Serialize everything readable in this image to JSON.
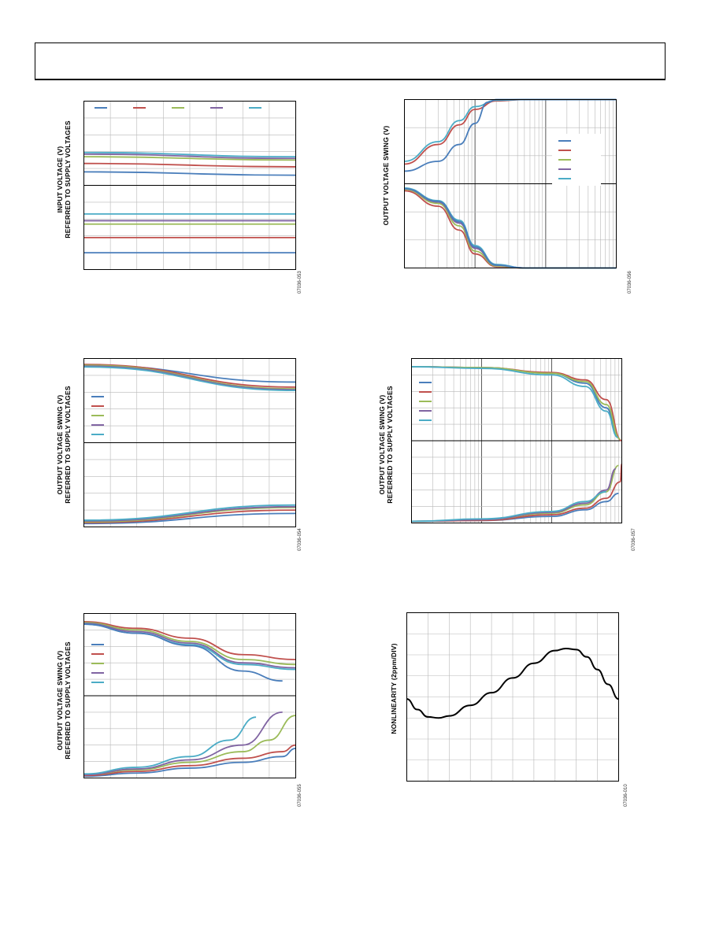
{
  "page": {
    "header_text": ""
  },
  "colors": {
    "s1": "#4a7ebb",
    "s2": "#c0504d",
    "s3": "#9bbb59",
    "s4": "#8064a2",
    "s5": "#4bacc6",
    "grid": "#b8b8b8",
    "axis": "#000000",
    "nonlinearity": "#000000"
  },
  "chart_data": [
    {
      "id": "input-voltage",
      "type": "line",
      "ylabel_line1": "INPUT VOLTAGE (V)",
      "ylabel_line2": "REFERRED TO SUPPLY VOLTAGES",
      "figure_id": "07036-053",
      "xscale": "linear",
      "xlim": [
        0,
        8
      ],
      "ylim": [
        0,
        10
      ],
      "split_y": 5,
      "grid_x": 8,
      "grid_y": 10,
      "legend_position": "top",
      "series": [
        {
          "color": "s1",
          "x": [
            0,
            8
          ],
          "y": [
            5.8,
            5.6
          ]
        },
        {
          "color": "s2",
          "x": [
            0,
            8
          ],
          "y": [
            6.3,
            6.1
          ]
        },
        {
          "color": "s3",
          "x": [
            0,
            8
          ],
          "y": [
            6.7,
            6.5
          ]
        },
        {
          "color": "s4",
          "x": [
            0,
            8
          ],
          "y": [
            6.85,
            6.6
          ]
        },
        {
          "color": "s5",
          "x": [
            0,
            8
          ],
          "y": [
            6.95,
            6.7
          ]
        },
        {
          "color": "s5",
          "x": [
            0,
            8
          ],
          "y": [
            3.3,
            3.3
          ]
        },
        {
          "color": "s4",
          "x": [
            0,
            8
          ],
          "y": [
            2.9,
            2.9
          ]
        },
        {
          "color": "s3",
          "x": [
            0,
            8
          ],
          "y": [
            2.7,
            2.7
          ]
        },
        {
          "color": "s2",
          "x": [
            0,
            8
          ],
          "y": [
            1.9,
            1.9
          ]
        },
        {
          "color": "s1",
          "x": [
            0,
            8
          ],
          "y": [
            1.0,
            1.0
          ]
        }
      ]
    },
    {
      "id": "swing-vs-frequency",
      "type": "line",
      "ylabel_line1": "OUTPUT VOLTAGE SWING (V)",
      "ylabel_line2": "",
      "figure_id": "07036-056",
      "xscale": "log",
      "xlim": [
        1,
        1000
      ],
      "ylim": [
        -6,
        6
      ],
      "split_y": 0,
      "grid_x_decades": 3,
      "grid_y": 6,
      "legend_position": "right",
      "series": [
        {
          "color": "s2",
          "x": [
            1,
            3,
            6,
            10,
            20,
            50,
            1000
          ],
          "y": [
            1.4,
            2.8,
            4.2,
            5.3,
            5.9,
            6.0,
            6.0
          ]
        },
        {
          "color": "s5",
          "x": [
            1,
            3,
            6,
            10,
            20,
            50,
            1000
          ],
          "y": [
            1.6,
            3.0,
            4.5,
            5.5,
            5.95,
            6.0,
            6.0
          ]
        },
        {
          "color": "s1",
          "x": [
            1,
            3,
            6,
            10,
            15,
            20,
            1000
          ],
          "y": [
            0.9,
            1.6,
            2.8,
            4.3,
            5.8,
            6.0,
            6.0
          ]
        },
        {
          "color": "s2",
          "x": [
            1,
            3,
            6,
            10,
            20,
            50,
            1000
          ],
          "y": [
            -0.5,
            -1.6,
            -3.3,
            -5.0,
            -5.9,
            -6.0,
            -6.0
          ]
        },
        {
          "color": "s3",
          "x": [
            1,
            3,
            6,
            10,
            20,
            50,
            1000
          ],
          "y": [
            -0.4,
            -1.4,
            -3.0,
            -4.8,
            -5.85,
            -6.0,
            -6.0
          ]
        },
        {
          "color": "s4",
          "x": [
            1,
            3,
            6,
            10,
            20,
            50,
            1000
          ],
          "y": [
            -0.35,
            -1.3,
            -2.8,
            -4.6,
            -5.8,
            -6.0,
            -6.0
          ]
        },
        {
          "color": "s5",
          "x": [
            1,
            3,
            6,
            10,
            20,
            50,
            1000
          ],
          "y": [
            -0.3,
            -1.2,
            -2.6,
            -4.4,
            -5.75,
            -6.0,
            -6.0
          ]
        },
        {
          "color": "s1",
          "x": [
            1,
            3,
            6,
            10,
            20,
            50,
            1000
          ],
          "y": [
            -0.35,
            -1.25,
            -2.7,
            -4.5,
            -5.8,
            -6.0,
            -6.0
          ]
        }
      ]
    },
    {
      "id": "swing-vs-load-linear",
      "type": "line",
      "ylabel_line1": "OUTPUT VOLTAGE SWING (V)",
      "ylabel_line2": "REFERRED TO SUPPLY VOLTAGES",
      "figure_id": "07036-054",
      "xscale": "linear",
      "xlim": [
        0,
        8
      ],
      "ylim": [
        0,
        10
      ],
      "split_y": 5,
      "grid_x": 8,
      "grid_y": 10,
      "legend_position": "left",
      "series": [
        {
          "color": "s1",
          "x": [
            0,
            8
          ],
          "y": [
            9.6,
            8.6
          ]
        },
        {
          "color": "s2",
          "x": [
            0,
            8
          ],
          "y": [
            9.65,
            8.3
          ]
        },
        {
          "color": "s3",
          "x": [
            0,
            8
          ],
          "y": [
            9.6,
            8.2
          ]
        },
        {
          "color": "s4",
          "x": [
            0,
            8
          ],
          "y": [
            9.55,
            8.15
          ]
        },
        {
          "color": "s5",
          "x": [
            0,
            8
          ],
          "y": [
            9.5,
            8.1
          ]
        },
        {
          "color": "s1",
          "x": [
            0,
            8
          ],
          "y": [
            0.2,
            0.8
          ]
        },
        {
          "color": "s2",
          "x": [
            0,
            8
          ],
          "y": [
            0.25,
            1.0
          ]
        },
        {
          "color": "s3",
          "x": [
            0,
            8
          ],
          "y": [
            0.3,
            1.15
          ]
        },
        {
          "color": "s4",
          "x": [
            0,
            8
          ],
          "y": [
            0.35,
            1.2
          ]
        },
        {
          "color": "s5",
          "x": [
            0,
            8
          ],
          "y": [
            0.4,
            1.3
          ]
        }
      ]
    },
    {
      "id": "swing-vs-load-log",
      "type": "line",
      "ylabel_line1": "OUTPUT VOLTAGE SWING (V)",
      "ylabel_line2": "REFERRED TO SUPPLY VOLTAGES",
      "figure_id": "07036-057",
      "xscale": "log",
      "xlim": [
        1,
        1000
      ],
      "ylim": [
        0,
        10
      ],
      "split_y": 5,
      "grid_x_decades": 3,
      "grid_y": 10,
      "legend_position": "left",
      "series": [
        {
          "color": "s1",
          "x": [
            1,
            10,
            100,
            300,
            600,
            900
          ],
          "y": [
            9.5,
            9.45,
            9.1,
            8.5,
            7.0,
            5.2
          ]
        },
        {
          "color": "s2",
          "x": [
            1,
            10,
            100,
            300,
            600,
            1000
          ],
          "y": [
            9.5,
            9.45,
            9.15,
            8.7,
            7.5,
            5.0
          ]
        },
        {
          "color": "s3",
          "x": [
            1,
            10,
            100,
            300,
            600,
            950
          ],
          "y": [
            9.5,
            9.45,
            9.1,
            8.6,
            7.2,
            5.1
          ]
        },
        {
          "color": "s5",
          "x": [
            1,
            10,
            100,
            300,
            600,
            880
          ],
          "y": [
            9.5,
            9.4,
            9.0,
            8.3,
            6.8,
            5.2
          ]
        },
        {
          "color": "s1",
          "x": [
            1,
            10,
            100,
            300,
            600,
            900
          ],
          "y": [
            0.1,
            0.15,
            0.4,
            0.8,
            1.3,
            1.8
          ]
        },
        {
          "color": "s2",
          "x": [
            1,
            10,
            100,
            300,
            600,
            950,
            1000
          ],
          "y": [
            0.1,
            0.15,
            0.5,
            0.9,
            1.5,
            2.5,
            3.6
          ]
        },
        {
          "color": "s3",
          "x": [
            1,
            10,
            100,
            300,
            600,
            900
          ],
          "y": [
            0.1,
            0.2,
            0.6,
            1.1,
            1.9,
            3.5
          ]
        },
        {
          "color": "s4",
          "x": [
            1,
            10,
            100,
            300,
            600,
            820
          ],
          "y": [
            0.1,
            0.2,
            0.65,
            1.2,
            2.0,
            3.3
          ]
        },
        {
          "color": "s5",
          "x": [
            1,
            10,
            100,
            300,
            600
          ],
          "y": [
            0.1,
            0.25,
            0.7,
            1.3,
            1.9
          ]
        }
      ]
    },
    {
      "id": "swing-vs-current",
      "type": "line",
      "ylabel_line1": "OUTPUT VOLTAGE SWING (V)",
      "ylabel_line2": "REFERRED TO SUPPLY VOLTAGES",
      "figure_id": "07036-055",
      "xscale": "linear",
      "xlim": [
        0,
        8
      ],
      "ylim": [
        0,
        10
      ],
      "split_y": 5,
      "grid_x": 8,
      "grid_y": 10,
      "legend_position": "left",
      "series": [
        {
          "color": "s2",
          "x": [
            0,
            2,
            4,
            6,
            8
          ],
          "y": [
            9.5,
            9.1,
            8.5,
            7.5,
            7.2
          ]
        },
        {
          "color": "s3",
          "x": [
            0,
            2,
            4,
            6,
            8
          ],
          "y": [
            9.45,
            9.0,
            8.3,
            7.2,
            6.9
          ]
        },
        {
          "color": "s4",
          "x": [
            0,
            2,
            4,
            6,
            8
          ],
          "y": [
            9.4,
            8.9,
            8.2,
            7.0,
            6.7
          ]
        },
        {
          "color": "s5",
          "x": [
            0,
            2,
            4,
            6,
            8
          ],
          "y": [
            9.35,
            8.8,
            8.1,
            6.9,
            6.6
          ]
        },
        {
          "color": "s1",
          "x": [
            0,
            2,
            4,
            6,
            7.5
          ],
          "y": [
            9.35,
            8.8,
            8.05,
            6.5,
            5.9
          ]
        },
        {
          "color": "s1",
          "x": [
            0,
            2,
            4,
            6,
            7.5,
            8
          ],
          "y": [
            0.1,
            0.3,
            0.6,
            0.95,
            1.3,
            1.8
          ]
        },
        {
          "color": "s2",
          "x": [
            0,
            2,
            4,
            6,
            7.5,
            8
          ],
          "y": [
            0.15,
            0.4,
            0.75,
            1.2,
            1.6,
            2.0
          ]
        },
        {
          "color": "s3",
          "x": [
            0,
            2,
            4,
            6,
            7,
            8
          ],
          "y": [
            0.2,
            0.5,
            0.95,
            1.6,
            2.3,
            3.8
          ]
        },
        {
          "color": "s4",
          "x": [
            0,
            2,
            4,
            6,
            7.5
          ],
          "y": [
            0.2,
            0.55,
            1.1,
            2.0,
            4.0
          ]
        },
        {
          "color": "s5",
          "x": [
            0,
            2,
            4,
            5.5,
            6.5
          ],
          "y": [
            0.25,
            0.65,
            1.3,
            2.3,
            3.7
          ]
        }
      ]
    },
    {
      "id": "nonlinearity",
      "type": "line",
      "ylabel_line1": "NONLINEARITY (2ppm/DIV)",
      "ylabel_line2": "",
      "figure_id": "07036-010",
      "xscale": "linear",
      "xlim": [
        0,
        10
      ],
      "ylim": [
        -4,
        4
      ],
      "grid_x": 10,
      "grid_y": 8,
      "series": [
        {
          "color": "nonlinearity",
          "x": [
            0,
            0.5,
            1,
            1.5,
            2,
            3,
            4,
            5,
            6,
            7,
            7.5,
            8,
            8.5,
            9,
            9.5,
            10
          ],
          "y": [
            -0.1,
            -0.6,
            -0.95,
            -1.0,
            -0.9,
            -0.4,
            0.2,
            0.9,
            1.6,
            2.2,
            2.3,
            2.25,
            1.9,
            1.3,
            0.6,
            -0.1
          ]
        }
      ]
    }
  ]
}
